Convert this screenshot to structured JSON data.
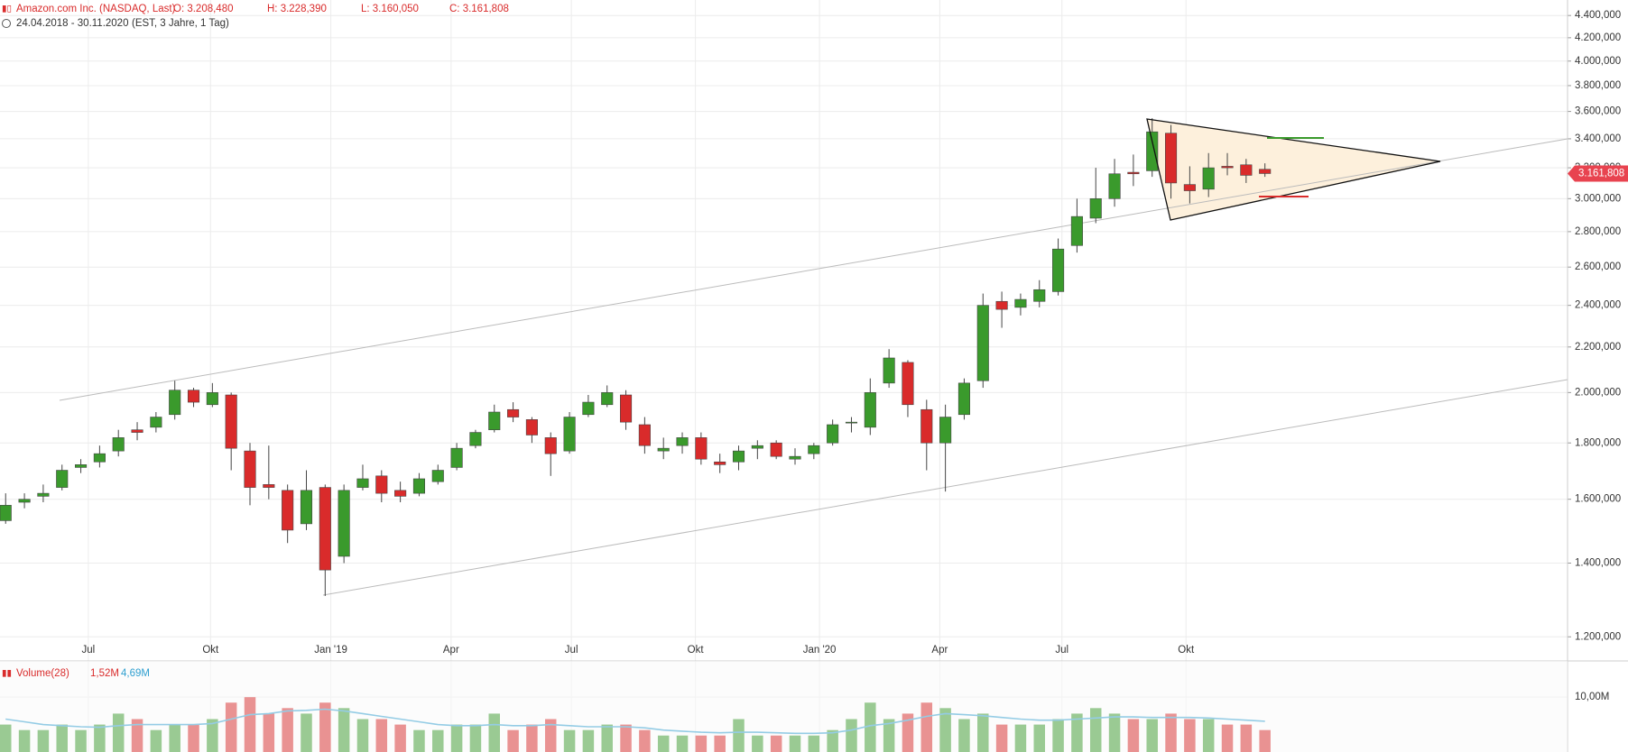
{
  "chart_data": {
    "type": "candlestick",
    "title": "Amazon.com Inc. (NASDAQ, Last)",
    "header_values": [
      "O: 3.208,480",
      "H: 3.228,390",
      "L: 3.160,050",
      "C: 3.161,808"
    ],
    "subtitle": "24.04.2018 - 30.11.2020",
    "subtitle_note": "(EST, 3 Jahre, 1 Tag)",
    "up_color": "#3a9a2c",
    "down_color": "#d92b2b",
    "ylog": true,
    "grid": true,
    "xlim": [
      -0.3,
      83.1
    ],
    "xticks": [
      {
        "value": 4.4,
        "label": "Jul"
      },
      {
        "value": 10.9,
        "label": "Okt"
      },
      {
        "value": 17.3,
        "label": "Jan '19"
      },
      {
        "value": 23.7,
        "label": "Apr"
      },
      {
        "value": 30.1,
        "label": "Jul"
      },
      {
        "value": 36.7,
        "label": "Okt"
      },
      {
        "value": 43.3,
        "label": "Jan '20"
      },
      {
        "value": 49.7,
        "label": "Apr"
      },
      {
        "value": 56.2,
        "label": "Jul"
      },
      {
        "value": 62.8,
        "label": "Okt"
      }
    ],
    "ylim": [
      1141,
      4545
    ],
    "yticks": [
      {
        "value": 1200,
        "label": "1.200,000"
      },
      {
        "value": 1400,
        "label": "1.400,000"
      },
      {
        "value": 1600,
        "label": "1.600,000"
      },
      {
        "value": 1800,
        "label": "1.800,000"
      },
      {
        "value": 2000,
        "label": "2.000,000"
      },
      {
        "value": 2200,
        "label": "2.200,000"
      },
      {
        "value": 2400,
        "label": "2.400,000"
      },
      {
        "value": 2600,
        "label": "2.600,000"
      },
      {
        "value": 2800,
        "label": "2.800,000"
      },
      {
        "value": 3000,
        "label": "3.000,000"
      },
      {
        "value": 3200,
        "label": "3.200,000"
      },
      {
        "value": 3400,
        "label": "3.400,000"
      },
      {
        "value": 3600,
        "label": "3.600,000"
      },
      {
        "value": 3800,
        "label": "3.800,000"
      },
      {
        "value": 4000,
        "label": "4.000,000"
      },
      {
        "value": 4200,
        "label": "4.200,000"
      },
      {
        "value": 4400,
        "label": "4.400,000"
      }
    ],
    "last_price": {
      "value": 3161.808,
      "label": "3.161,808"
    },
    "open": [
      1530,
      1590,
      1610,
      1640,
      1710,
      1730,
      1770,
      1850,
      1860,
      1910,
      2010,
      1950,
      1990,
      1770,
      1650,
      1630,
      1520,
      1640,
      1420,
      1640,
      1680,
      1630,
      1620,
      1660,
      1710,
      1790,
      1850,
      1930,
      1890,
      1820,
      1770,
      1910,
      1950,
      1990,
      1870,
      1770,
      1790,
      1820,
      1730,
      1730,
      1780,
      1800,
      1740,
      1760,
      1800,
      1880,
      1860,
      2040,
      2130,
      1930,
      1800,
      1910,
      2050,
      2420,
      2390,
      2420,
      2470,
      2720,
      2880,
      3000,
      3170,
      3180,
      3440,
      3090,
      3060,
      3210,
      3220,
      3190
    ],
    "high": [
      1620,
      1620,
      1650,
      1720,
      1740,
      1790,
      1850,
      1880,
      1920,
      2050,
      2020,
      2040,
      2000,
      1800,
      1790,
      1650,
      1700,
      1650,
      1650,
      1720,
      1700,
      1660,
      1690,
      1720,
      1800,
      1850,
      1950,
      1960,
      1900,
      1840,
      1920,
      1990,
      2030,
      2010,
      1900,
      1820,
      1840,
      1840,
      1760,
      1790,
      1810,
      1810,
      1780,
      1800,
      1890,
      1900,
      2060,
      2190,
      2140,
      1970,
      1950,
      2060,
      2460,
      2470,
      2460,
      2530,
      2760,
      3000,
      3200,
      3260,
      3290,
      3550,
      3500,
      3210,
      3300,
      3300,
      3260,
      3230
    ],
    "low": [
      1520,
      1570,
      1590,
      1630,
      1690,
      1710,
      1750,
      1810,
      1840,
      1890,
      1940,
      1940,
      1700,
      1580,
      1600,
      1460,
      1500,
      1307,
      1400,
      1630,
      1590,
      1590,
      1610,
      1650,
      1700,
      1780,
      1840,
      1880,
      1800,
      1680,
      1760,
      1900,
      1940,
      1850,
      1760,
      1740,
      1760,
      1720,
      1690,
      1700,
      1740,
      1740,
      1720,
      1740,
      1790,
      1840,
      1830,
      2020,
      1900,
      1700,
      1626,
      1890,
      2020,
      2290,
      2350,
      2390,
      2450,
      2680,
      2850,
      2950,
      3080,
      3140,
      3000,
      2970,
      3010,
      3150,
      3100,
      3140
    ],
    "close": [
      1580,
      1600,
      1620,
      1700,
      1720,
      1760,
      1820,
      1840,
      1900,
      2010,
      1960,
      2000,
      1780,
      1640,
      1640,
      1500,
      1630,
      1380,
      1630,
      1670,
      1620,
      1610,
      1670,
      1700,
      1780,
      1840,
      1920,
      1900,
      1830,
      1760,
      1900,
      1960,
      2000,
      1880,
      1790,
      1780,
      1820,
      1740,
      1720,
      1770,
      1790,
      1750,
      1750,
      1790,
      1870,
      1880,
      2000,
      2150,
      1950,
      1800,
      1900,
      2040,
      2400,
      2380,
      2430,
      2480,
      2700,
      2890,
      3000,
      3160,
      3160,
      3450,
      3100,
      3050,
      3200,
      3200,
      3150,
      3161.808
    ],
    "volume": {
      "name": "Volume(28)",
      "last_value": "1,52M",
      "ma_value": "4,69M",
      "ma_color": "#2f9fd0",
      "ylim": [
        0,
        16.6
      ],
      "yticks": [
        {
          "value": 10,
          "label": "10,00M"
        }
      ],
      "values": [
        5,
        4,
        4,
        5,
        4,
        5,
        7,
        6,
        4,
        5,
        5,
        6,
        9,
        10,
        7,
        8,
        7,
        9,
        8,
        6,
        6,
        5,
        4,
        4,
        5,
        5,
        7,
        4,
        5,
        6,
        4,
        4,
        5,
        5,
        4,
        3,
        3,
        3,
        3,
        6,
        3,
        3,
        3,
        3,
        4,
        6,
        9,
        6,
        7,
        9,
        8,
        6,
        7,
        5,
        5,
        5,
        6,
        7,
        8,
        7,
        6,
        6,
        7,
        6,
        6,
        5,
        5,
        4
      ],
      "ma": [
        6,
        5.5,
        5,
        4.8,
        4.6,
        4.5,
        4.8,
        5,
        5,
        5,
        5,
        5.2,
        6,
        6.8,
        7,
        7.5,
        7.6,
        7.8,
        7.5,
        7,
        6.5,
        6,
        5.5,
        5,
        4.8,
        4.8,
        5,
        4.8,
        4.8,
        5,
        4.8,
        4.6,
        4.6,
        4.6,
        4.4,
        4,
        3.8,
        3.6,
        3.5,
        3.6,
        3.6,
        3.5,
        3.4,
        3.4,
        3.5,
        4,
        4.8,
        5.2,
        5.8,
        6.5,
        7,
        6.8,
        6.6,
        6.3,
        6,
        5.8,
        5.8,
        6,
        6.2,
        6.4,
        6.4,
        6.3,
        6.3,
        6.3,
        6.2,
        6,
        5.8,
        5.6
      ]
    }
  }
}
